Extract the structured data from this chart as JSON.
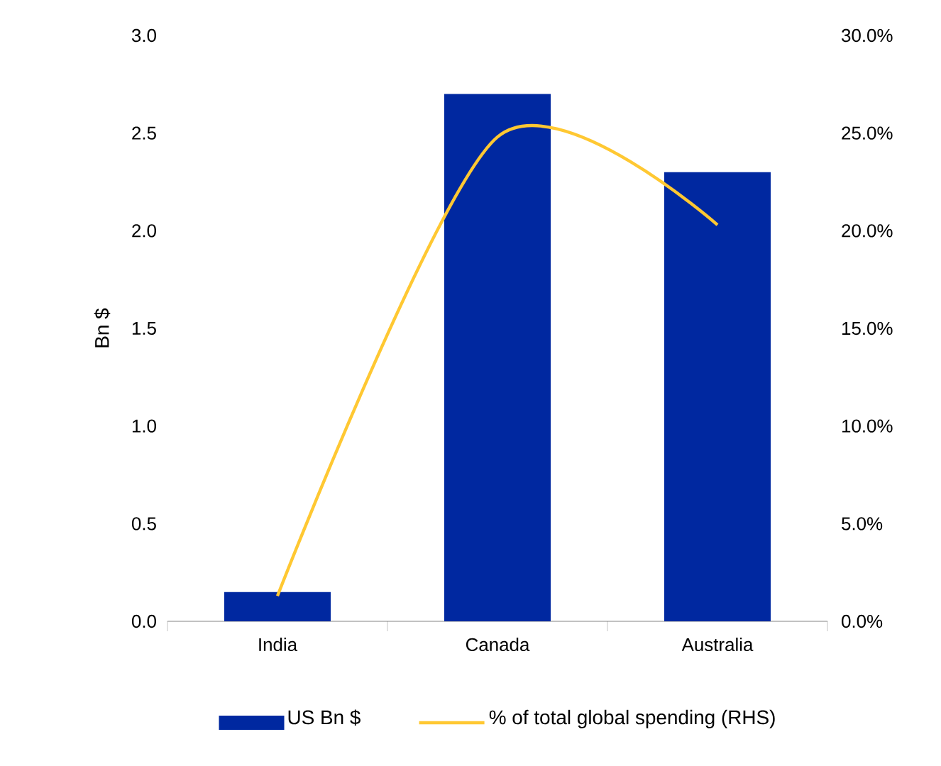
{
  "chart_data": {
    "type": "bar",
    "categories": [
      "India",
      "Canada",
      "Australia"
    ],
    "ylabel": "Bn $",
    "ylim": [
      0,
      3.0
    ],
    "yticks": [
      {
        "value": 0,
        "label": "0.0"
      },
      {
        "value": 0.5,
        "label": "0.5"
      },
      {
        "value": 1.0,
        "label": "1.0"
      },
      {
        "value": 1.5,
        "label": "1.5"
      },
      {
        "value": 2.0,
        "label": "2.0"
      },
      {
        "value": 2.5,
        "label": "2.5"
      },
      {
        "value": 3.0,
        "label": "3.0"
      }
    ],
    "y2lim": [
      0,
      30
    ],
    "y2ticks": [
      {
        "value": 0,
        "label": "0.0%"
      },
      {
        "value": 5,
        "label": "5.0%"
      },
      {
        "value": 10,
        "label": "10.0%"
      },
      {
        "value": 15,
        "label": "15.0%"
      },
      {
        "value": 20,
        "label": "20.0%"
      },
      {
        "value": 25,
        "label": "25.0%"
      },
      {
        "value": 30,
        "label": "30.0%"
      }
    ],
    "legend": "bottom",
    "grid": false,
    "series": [
      {
        "name": "US Bn $",
        "color": "#0028a0",
        "values": [
          0.15,
          2.7,
          2.3
        ]
      },
      {
        "name": "% of total global spending (RHS)",
        "type": "line",
        "axis": "y2",
        "color": "#ffc832",
        "values": [
          1.3,
          24.8,
          20.3
        ]
      }
    ]
  }
}
